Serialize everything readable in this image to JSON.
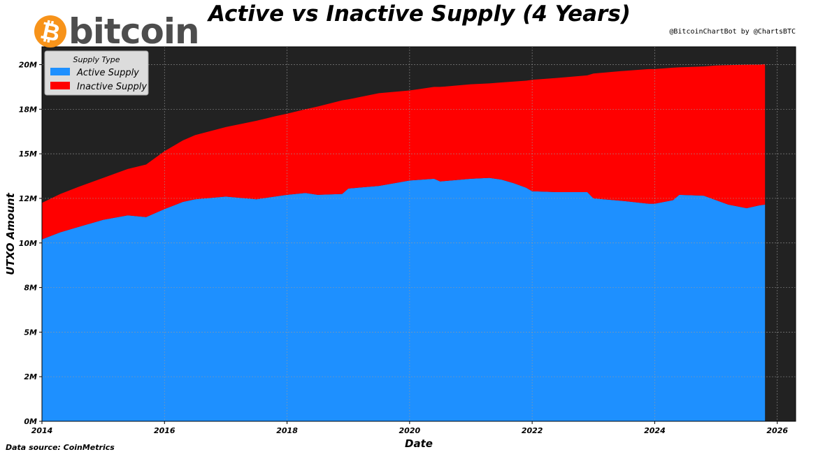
{
  "header": {
    "logo_text": "bitcoin",
    "credit": "@BitcoinChartBot by @ChartsBTC"
  },
  "footer": {
    "source": "Data source: CoinMetrics"
  },
  "colors": {
    "active": "#1e90ff",
    "inactive": "#ff0000",
    "plot_bg": "#222222",
    "logo_orange": "#f7931a"
  },
  "chart_data": {
    "type": "area",
    "title": "Active vs Inactive Supply (4 Years)",
    "xlabel": "Date",
    "ylabel": "UTXO Amount",
    "xlim": [
      2014.0,
      2026.3
    ],
    "ylim": [
      0,
      21000000
    ],
    "xticks": [
      2014,
      2016,
      2018,
      2020,
      2022,
      2024,
      2026
    ],
    "xtick_labels": [
      "2014",
      "2016",
      "2018",
      "2020",
      "2022",
      "2024",
      "2026"
    ],
    "yticks": [
      0,
      2500000,
      5000000,
      7500000,
      10000000,
      12500000,
      15000000,
      17500000,
      20000000
    ],
    "ytick_labels": [
      "0M",
      "2M",
      "5M",
      "8M",
      "10M",
      "12M",
      "15M",
      "18M",
      "20M"
    ],
    "grid": true,
    "legend": {
      "title": "Supply Type",
      "placement": "top-left"
    },
    "x": [
      2014.0,
      2014.3,
      2014.6,
      2015.0,
      2015.4,
      2015.7,
      2016.0,
      2016.3,
      2016.5,
      2017.0,
      2017.5,
      2017.8,
      2018.0,
      2018.3,
      2018.5,
      2018.9,
      2019.0,
      2019.5,
      2020.0,
      2020.4,
      2020.5,
      2021.0,
      2021.3,
      2021.5,
      2021.7,
      2021.9,
      2022.0,
      2022.4,
      2022.9,
      2023.0,
      2023.5,
      2023.9,
      2024.0,
      2024.3,
      2024.4,
      2024.8,
      2025.0,
      2025.2,
      2025.5,
      2025.7,
      2025.8
    ],
    "series": [
      {
        "name": "Active Supply",
        "values": [
          10.2,
          10.6,
          10.9,
          11.3,
          11.55,
          11.45,
          11.9,
          12.3,
          12.45,
          12.6,
          12.45,
          12.6,
          12.7,
          12.8,
          12.7,
          12.75,
          13.05,
          13.2,
          13.5,
          13.6,
          13.45,
          13.6,
          13.65,
          13.55,
          13.35,
          13.1,
          12.9,
          12.85,
          12.85,
          12.5,
          12.35,
          12.2,
          12.2,
          12.4,
          12.7,
          12.65,
          12.4,
          12.15,
          11.95,
          12.1,
          12.15
        ]
      },
      {
        "name": "Inactive Supply",
        "values": [
          2.05,
          2.15,
          2.25,
          2.35,
          2.6,
          2.95,
          3.25,
          3.45,
          3.6,
          3.9,
          4.4,
          4.5,
          4.55,
          4.7,
          4.95,
          5.25,
          5.0,
          5.2,
          5.05,
          5.15,
          5.3,
          5.3,
          5.3,
          5.45,
          5.7,
          6.0,
          6.25,
          6.4,
          6.55,
          7.0,
          7.3,
          7.55,
          7.55,
          7.43,
          7.15,
          7.25,
          7.55,
          7.82,
          8.05,
          7.9,
          7.88
        ]
      }
    ],
    "value_scale": 1000000
  }
}
